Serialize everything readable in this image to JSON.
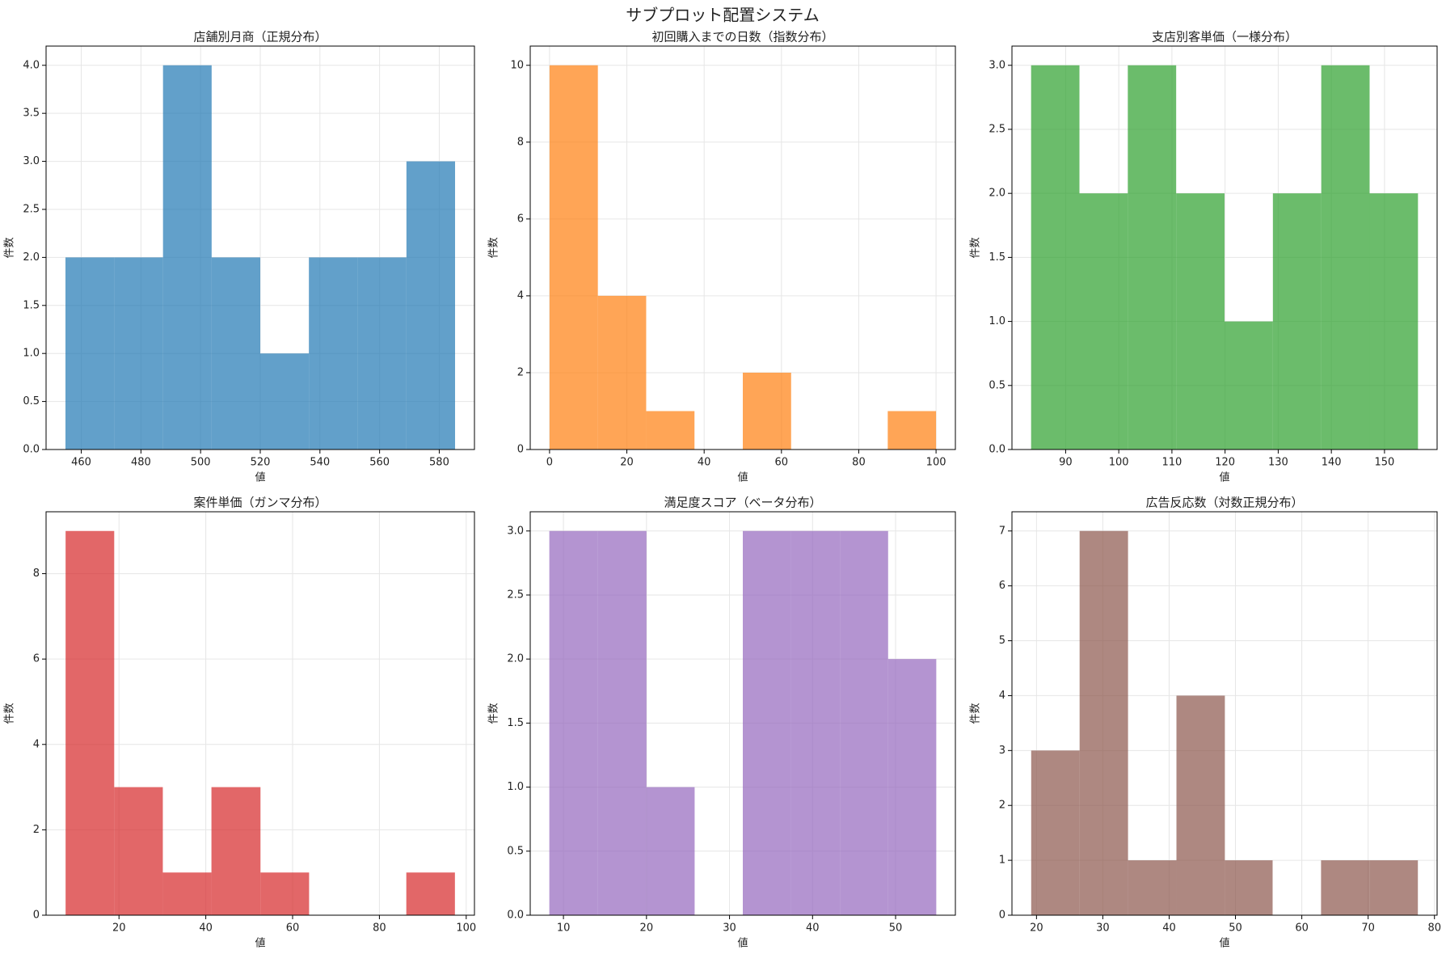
{
  "title": "サブプロット配置システム",
  "chart_data": [
    {
      "type": "histogram",
      "title": "店舗別月商（正規分布）",
      "xlabel": "値",
      "ylabel": "件数",
      "color": "#1f77b4",
      "alpha": 0.7,
      "grid": true,
      "bins": [
        454.7,
        471.0,
        487.4,
        503.7,
        520.0,
        536.3,
        552.7,
        569.0,
        585.3
      ],
      "values": [
        2,
        2,
        4,
        2,
        1,
        2,
        2,
        3
      ],
      "xlim": [
        448.2,
        591.8
      ],
      "xticks": [
        460,
        480,
        500,
        520,
        540,
        560,
        580
      ],
      "ylim": [
        0,
        4.2
      ],
      "yticks": [
        {
          "value": 0,
          "label": "0.0"
        },
        0.5,
        {
          "value": 1,
          "label": "1.0"
        },
        1.5,
        {
          "value": 2,
          "label": "2.0"
        },
        2.5,
        {
          "value": 3,
          "label": "3.0"
        },
        3.5,
        {
          "value": 4,
          "label": "4.0"
        }
      ]
    },
    {
      "type": "histogram",
      "title": "初回購入までの日数（指数分布）",
      "xlabel": "値",
      "ylabel": "件数",
      "color": "#ff7f0e",
      "alpha": 0.7,
      "grid": true,
      "bins": [
        0,
        12.5,
        25,
        37.5,
        50,
        62.5,
        75,
        87.5,
        100
      ],
      "values": [
        10,
        4,
        1,
        0,
        2,
        0,
        0,
        1
      ],
      "xlim": [
        -5,
        105
      ],
      "xticks": [
        0,
        20,
        40,
        60,
        80,
        100
      ],
      "ylim": [
        0,
        10.5
      ],
      "yticks": [
        0,
        2,
        4,
        6,
        8,
        10
      ]
    },
    {
      "type": "histogram",
      "title": "支店別客単価（一様分布）",
      "xlabel": "値",
      "ylabel": "件数",
      "color": "#2ca02c",
      "alpha": 0.7,
      "grid": true,
      "bins": [
        83.5,
        92.6,
        101.7,
        110.8,
        119.9,
        129.0,
        138.1,
        147.2,
        156.3
      ],
      "values": [
        3,
        2,
        3,
        2,
        1,
        2,
        3,
        2
      ],
      "xlim": [
        79.9,
        159.9
      ],
      "xticks": [
        90,
        100,
        110,
        120,
        130,
        140,
        150
      ],
      "ylim": [
        0,
        3.15
      ],
      "yticks": [
        {
          "value": 0,
          "label": "0.0"
        },
        0.5,
        {
          "value": 1,
          "label": "1.0"
        },
        1.5,
        {
          "value": 2,
          "label": "2.0"
        },
        2.5,
        {
          "value": 3,
          "label": "3.0"
        }
      ]
    },
    {
      "type": "histogram",
      "title": "案件単価（ガンマ分布）",
      "xlabel": "値",
      "ylabel": "件数",
      "color": "#d62728",
      "alpha": 0.7,
      "grid": true,
      "bins": [
        7.7,
        18.9,
        30.1,
        41.3,
        52.6,
        63.8,
        75.0,
        86.2,
        97.4
      ],
      "values": [
        9,
        3,
        1,
        3,
        1,
        0,
        0,
        1
      ],
      "xlim": [
        3.2,
        101.9
      ],
      "xticks": [
        20,
        40,
        60,
        80,
        100
      ],
      "ylim": [
        0,
        9.45
      ],
      "yticks": [
        0,
        2,
        4,
        6,
        8
      ]
    },
    {
      "type": "histogram",
      "title": "満足度スコア（ベータ分布）",
      "xlabel": "値",
      "ylabel": "件数",
      "color": "#9467bd",
      "alpha": 0.7,
      "grid": true,
      "bins": [
        8.3,
        14.1,
        20.0,
        25.8,
        31.6,
        37.4,
        43.3,
        49.1,
        54.9
      ],
      "values": [
        3,
        3,
        1,
        0,
        3,
        3,
        3,
        2
      ],
      "xlim": [
        6.0,
        57.2
      ],
      "xticks": [
        10,
        20,
        30,
        40,
        50
      ],
      "ylim": [
        0,
        3.15
      ],
      "yticks": [
        {
          "value": 0,
          "label": "0.0"
        },
        0.5,
        {
          "value": 1,
          "label": "1.0"
        },
        1.5,
        {
          "value": 2,
          "label": "2.0"
        },
        2.5,
        {
          "value": 3,
          "label": "3.0"
        }
      ]
    },
    {
      "type": "histogram",
      "title": "広告反応数（対数正規分布）",
      "xlabel": "値",
      "ylabel": "件数",
      "color": "#8c564b",
      "alpha": 0.7,
      "grid": true,
      "bins": [
        19.2,
        26.5,
        33.8,
        41.1,
        48.4,
        55.6,
        62.9,
        70.2,
        77.5
      ],
      "values": [
        3,
        7,
        1,
        4,
        1,
        0,
        1,
        1
      ],
      "xlim": [
        16.3,
        80.4
      ],
      "xticks": [
        20,
        30,
        40,
        50,
        60,
        70,
        80
      ],
      "ylim": [
        0,
        7.35
      ],
      "yticks": [
        0,
        1,
        2,
        3,
        4,
        5,
        6,
        7
      ]
    }
  ]
}
